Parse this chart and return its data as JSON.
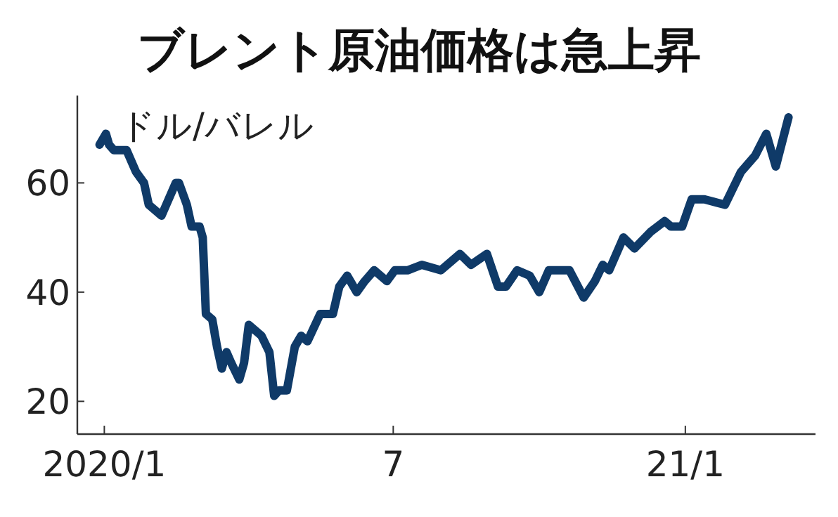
{
  "chart_data": {
    "type": "line",
    "title": "ブレント原油価格は急上昇",
    "ylabel": "ドル/バレル",
    "xlim": [
      "2019-12-15",
      "2021-03-24"
    ],
    "ylim": [
      14,
      76
    ],
    "xticks": [
      {
        "value": "2020-01-01",
        "label": "2020/1"
      },
      {
        "value": "2020-07-01",
        "label": "7"
      },
      {
        "value": "2021-01-01",
        "label": "21/1"
      }
    ],
    "yticks": [
      20,
      40,
      60
    ],
    "grid": false,
    "marker": "none",
    "line_style": "solid",
    "series": [
      {
        "color": "#0f3a68",
        "x": [
          "2019-12-29",
          "2020-01-02",
          "2020-01-04",
          "2020-01-07",
          "2020-01-15",
          "2020-01-21",
          "2020-01-26",
          "2020-01-29",
          "2020-02-02",
          "2020-02-06",
          "2020-02-15",
          "2020-02-17",
          "2020-02-22",
          "2020-02-25",
          "2020-03-01",
          "2020-03-03",
          "2020-03-05",
          "2020-03-09",
          "2020-03-12",
          "2020-03-15",
          "2020-03-18",
          "2020-03-21",
          "2020-03-26",
          "2020-03-29",
          "2020-04-01",
          "2020-04-05",
          "2020-04-09",
          "2020-04-14",
          "2020-04-17",
          "2020-04-20",
          "2020-04-25",
          "2020-04-30",
          "2020-05-04",
          "2020-05-08",
          "2020-05-16",
          "2020-05-24",
          "2020-05-28",
          "2020-06-02",
          "2020-06-08",
          "2020-06-13",
          "2020-06-19",
          "2020-06-27",
          "2020-07-02",
          "2020-07-10",
          "2020-07-19",
          "2020-07-31",
          "2020-08-12",
          "2020-08-19",
          "2020-08-29",
          "2020-09-05",
          "2020-09-10",
          "2020-09-17",
          "2020-09-25",
          "2020-10-01",
          "2020-10-07",
          "2020-10-20",
          "2020-10-29",
          "2020-11-05",
          "2020-11-10",
          "2020-11-14",
          "2020-11-23",
          "2020-11-30",
          "2020-12-10",
          "2020-12-19",
          "2020-12-23",
          "2020-12-30",
          "2021-01-05",
          "2021-01-13",
          "2021-01-26",
          "2021-02-05",
          "2021-02-14",
          "2021-02-21",
          "2021-02-27",
          "2021-03-07"
        ],
        "values": [
          67,
          69,
          67,
          66,
          66,
          62,
          60,
          56,
          55,
          54,
          60,
          60,
          56,
          52,
          52,
          50,
          36,
          35,
          30,
          26,
          29,
          27,
          24,
          27,
          34,
          33,
          32,
          29,
          21,
          22,
          22,
          30,
          32,
          31,
          36,
          36,
          41,
          43,
          40,
          42,
          44,
          42,
          44,
          44,
          45,
          44,
          47,
          45,
          47,
          41,
          41,
          44,
          43,
          40,
          44,
          44,
          39,
          42,
          45,
          44,
          50,
          48,
          51,
          53,
          52,
          52,
          57,
          57,
          56,
          62,
          65,
          69,
          63,
          72
        ]
      }
    ]
  }
}
